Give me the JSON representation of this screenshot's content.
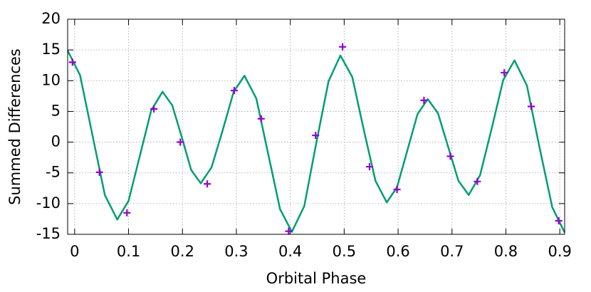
{
  "chart_data": {
    "type": "line",
    "x_label": "Orbital Phase",
    "y_label": "Summed Differences",
    "xlim": [
      -0.013,
      0.909
    ],
    "ylim": [
      -15,
      20
    ],
    "xticks": [
      0,
      0.1,
      0.2,
      0.3,
      0.4,
      0.5,
      0.6,
      0.7,
      0.8,
      0.9
    ],
    "yticks": [
      -15,
      -10,
      -5,
      0,
      5,
      10,
      15,
      20
    ],
    "grid": true,
    "series": [
      {
        "mode": "line",
        "color": "#009e73",
        "x": [
          -0.013,
          0.01,
          0.033,
          0.056,
          0.079,
          0.1,
          0.121,
          0.142,
          0.163,
          0.181,
          0.199,
          0.216,
          0.234,
          0.254,
          0.275,
          0.295,
          0.315,
          0.337,
          0.359,
          0.381,
          0.403,
          0.426,
          0.448,
          0.471,
          0.493,
          0.515,
          0.536,
          0.558,
          0.579,
          0.598,
          0.617,
          0.636,
          0.655,
          0.674,
          0.693,
          0.712,
          0.731,
          0.752,
          0.774,
          0.795,
          0.816,
          0.839,
          0.862,
          0.886,
          0.909
        ],
        "values": [
          14.9,
          10.9,
          1.15,
          -8.6,
          -12.6,
          -9.56,
          -2.2,
          5.16,
          8.2,
          6.0,
          0.75,
          -4.5,
          -6.7,
          -4.1,
          2.05,
          8.2,
          10.8,
          7.1,
          -1.9,
          -10.9,
          -14.6,
          -10.4,
          -0.25,
          9.9,
          14.1,
          10.6,
          2.15,
          -6.3,
          -9.8,
          -7.35,
          -1.4,
          4.55,
          7.0,
          4.7,
          -0.8,
          -6.3,
          -8.6,
          -5.4,
          2.35,
          10.1,
          13.3,
          9.2,
          -0.7,
          -10.6,
          -14.7
        ]
      },
      {
        "mode": "points",
        "color": "#9400d3",
        "x": [
          -0.004,
          0.046,
          0.097,
          0.147,
          0.196,
          0.246,
          0.296,
          0.346,
          0.397,
          0.447,
          0.497,
          0.547,
          0.598,
          0.648,
          0.697,
          0.747,
          0.797,
          0.847,
          0.898
        ],
        "values": [
          13.0,
          -4.9,
          -11.5,
          5.4,
          0,
          -6.8,
          8.4,
          3.8,
          -14.5,
          1.1,
          15.5,
          -4.0,
          -7.7,
          6.8,
          -2.3,
          -6.4,
          11.3,
          5.8,
          -12.8
        ]
      }
    ]
  }
}
